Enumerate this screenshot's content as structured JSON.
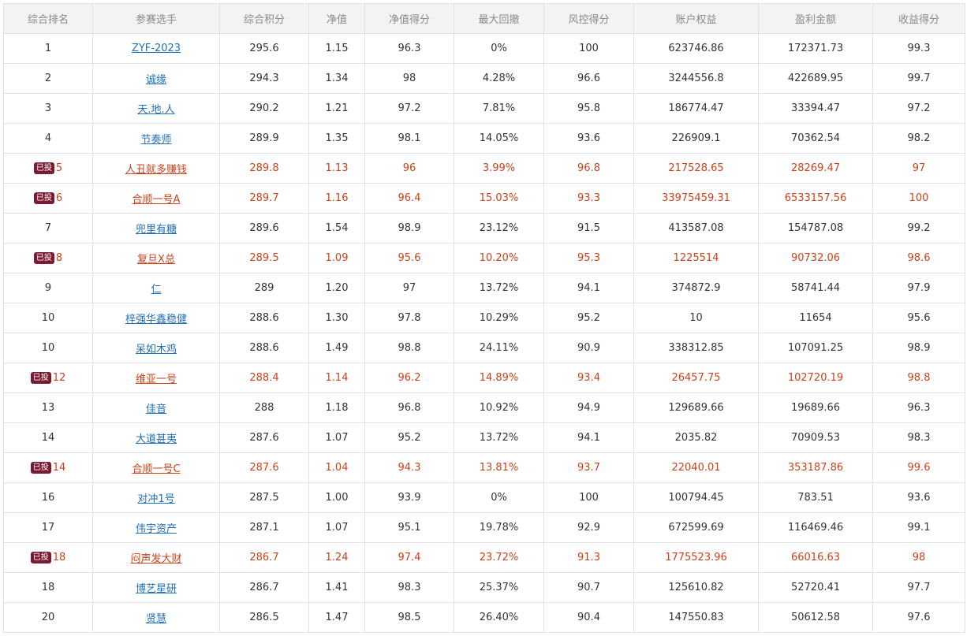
{
  "table": {
    "headers": [
      "综合排名",
      "参赛选手",
      "综合积分",
      "净值",
      "净值得分",
      "最大回撤",
      "风控得分",
      "账户权益",
      "盈利金额",
      "收益得分"
    ],
    "badge_label": "已投",
    "rows": [
      {
        "rank": "1",
        "name": "ZYF-2023",
        "score": "295.6",
        "nav": "1.15",
        "nav_score": "96.3",
        "max_drawdown": "0%",
        "risk_score": "100",
        "equity": "623746.86",
        "profit": "172371.73",
        "return_score": "99.3",
        "invested": false
      },
      {
        "rank": "2",
        "name": "诚缘",
        "score": "294.3",
        "nav": "1.34",
        "nav_score": "98",
        "max_drawdown": "4.28%",
        "risk_score": "96.6",
        "equity": "3244556.8",
        "profit": "422689.95",
        "return_score": "99.7",
        "invested": false
      },
      {
        "rank": "3",
        "name": "天.地.人",
        "score": "290.2",
        "nav": "1.21",
        "nav_score": "97.2",
        "max_drawdown": "7.81%",
        "risk_score": "95.8",
        "equity": "186774.47",
        "profit": "33394.47",
        "return_score": "97.2",
        "invested": false
      },
      {
        "rank": "4",
        "name": "节奏师",
        "score": "289.9",
        "nav": "1.35",
        "nav_score": "98.1",
        "max_drawdown": "14.05%",
        "risk_score": "93.6",
        "equity": "226909.1",
        "profit": "70362.54",
        "return_score": "98.2",
        "invested": false
      },
      {
        "rank": "5",
        "name": "人丑就多赚钱",
        "score": "289.8",
        "nav": "1.13",
        "nav_score": "96",
        "max_drawdown": "3.99%",
        "risk_score": "96.8",
        "equity": "217528.65",
        "profit": "28269.47",
        "return_score": "97",
        "invested": true
      },
      {
        "rank": "6",
        "name": "合顺一号A",
        "score": "289.7",
        "nav": "1.16",
        "nav_score": "96.4",
        "max_drawdown": "15.03%",
        "risk_score": "93.3",
        "equity": "33975459.31",
        "profit": "6533157.56",
        "return_score": "100",
        "invested": true
      },
      {
        "rank": "7",
        "name": "兜里有糖",
        "score": "289.6",
        "nav": "1.54",
        "nav_score": "98.9",
        "max_drawdown": "23.12%",
        "risk_score": "91.5",
        "equity": "413587.08",
        "profit": "154787.08",
        "return_score": "99.2",
        "invested": false
      },
      {
        "rank": "8",
        "name": "复旦X总",
        "score": "289.5",
        "nav": "1.09",
        "nav_score": "95.6",
        "max_drawdown": "10.20%",
        "risk_score": "95.3",
        "equity": "1225514",
        "profit": "90732.06",
        "return_score": "98.6",
        "invested": true
      },
      {
        "rank": "9",
        "name": "仁",
        "score": "289",
        "nav": "1.20",
        "nav_score": "97",
        "max_drawdown": "13.72%",
        "risk_score": "94.1",
        "equity": "374872.9",
        "profit": "58741.44",
        "return_score": "97.9",
        "invested": false
      },
      {
        "rank": "10",
        "name": "梓强华鑫稳健",
        "score": "288.6",
        "nav": "1.30",
        "nav_score": "97.8",
        "max_drawdown": "10.29%",
        "risk_score": "95.2",
        "equity": "10",
        "profit": "11654",
        "return_score": "95.6",
        "invested": false
      },
      {
        "rank": "10",
        "name": "呆如木鸡",
        "score": "288.6",
        "nav": "1.49",
        "nav_score": "98.8",
        "max_drawdown": "24.11%",
        "risk_score": "90.9",
        "equity": "338312.85",
        "profit": "107091.25",
        "return_score": "98.9",
        "invested": false
      },
      {
        "rank": "12",
        "name": "维亚一号",
        "score": "288.4",
        "nav": "1.14",
        "nav_score": "96.2",
        "max_drawdown": "14.89%",
        "risk_score": "93.4",
        "equity": "26457.75",
        "profit": "102720.19",
        "return_score": "98.8",
        "invested": true
      },
      {
        "rank": "13",
        "name": "佳音",
        "score": "288",
        "nav": "1.18",
        "nav_score": "96.8",
        "max_drawdown": "10.92%",
        "risk_score": "94.9",
        "equity": "129689.66",
        "profit": "19689.66",
        "return_score": "96.3",
        "invested": false
      },
      {
        "rank": "14",
        "name": "大道甚夷",
        "score": "287.6",
        "nav": "1.07",
        "nav_score": "95.2",
        "max_drawdown": "13.72%",
        "risk_score": "94.1",
        "equity": "2035.82",
        "profit": "70909.53",
        "return_score": "98.3",
        "invested": false
      },
      {
        "rank": "14",
        "name": "合顺一号C",
        "score": "287.6",
        "nav": "1.04",
        "nav_score": "94.3",
        "max_drawdown": "13.81%",
        "risk_score": "93.7",
        "equity": "22040.01",
        "profit": "353187.86",
        "return_score": "99.6",
        "invested": true
      },
      {
        "rank": "16",
        "name": "对冲1号",
        "score": "287.5",
        "nav": "1.00",
        "nav_score": "93.9",
        "max_drawdown": "0%",
        "risk_score": "100",
        "equity": "100794.45",
        "profit": "783.51",
        "return_score": "93.6",
        "invested": false
      },
      {
        "rank": "17",
        "name": "伟宇资产",
        "score": "287.1",
        "nav": "1.07",
        "nav_score": "95.1",
        "max_drawdown": "19.78%",
        "risk_score": "92.9",
        "equity": "672599.69",
        "profit": "116469.46",
        "return_score": "99.1",
        "invested": false
      },
      {
        "rank": "18",
        "name": "闷声发大财",
        "score": "286.7",
        "nav": "1.24",
        "nav_score": "97.4",
        "max_drawdown": "23.72%",
        "risk_score": "91.3",
        "equity": "1775523.96",
        "profit": "66016.63",
        "return_score": "98",
        "invested": true
      },
      {
        "rank": "18",
        "name": "博艺星研",
        "score": "286.7",
        "nav": "1.41",
        "nav_score": "98.3",
        "max_drawdown": "25.37%",
        "risk_score": "90.7",
        "equity": "125610.82",
        "profit": "52720.41",
        "return_score": "97.7",
        "invested": false
      },
      {
        "rank": "20",
        "name": "贤慧",
        "score": "286.5",
        "nav": "1.47",
        "nav_score": "98.5",
        "max_drawdown": "26.40%",
        "risk_score": "90.4",
        "equity": "147550.83",
        "profit": "50612.58",
        "return_score": "97.6",
        "invested": false
      }
    ]
  },
  "colors": {
    "link": "#1f6fb5",
    "invested_text": "#c8431a",
    "badge_bg": "#7a1b34",
    "header_bg": "#f3f3f3",
    "border": "#e2e2e2"
  }
}
